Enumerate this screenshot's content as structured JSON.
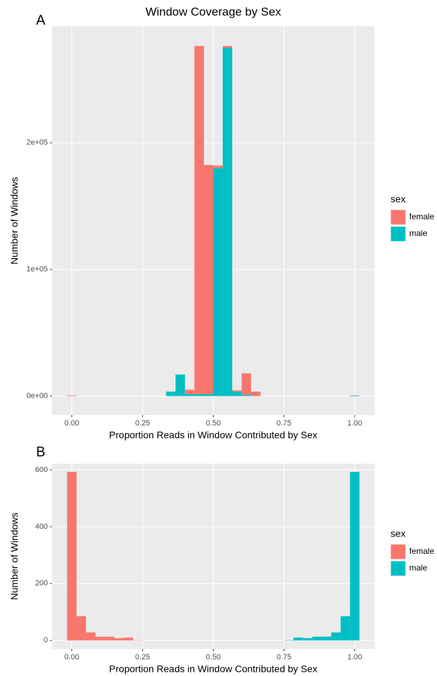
{
  "chart_data": [
    {
      "type": "histogram",
      "label": "A",
      "title": "Window Coverage by Sex",
      "x_label": "Proportion Reads in Window Contributed by Sex",
      "y_label": "Number of Windows",
      "legend_title": "sex",
      "legend": "right",
      "grid": true,
      "bins": [
        -0.0167,
        0.0167,
        0.3333,
        0.3667,
        0.4,
        0.4333,
        0.4667,
        0.5,
        0.5333,
        0.5667,
        0.6,
        0.6333,
        0.6667,
        0.9833,
        1.0167
      ],
      "series": [
        {
          "name": "female",
          "color": "#F8766D",
          "values": [
            500,
            0,
            0,
            0,
            3500,
            275000,
            181000,
            2000,
            1500,
            1000,
            17000,
            3500,
            0,
            0
          ]
        },
        {
          "name": "male",
          "color": "#00BFC4",
          "values": [
            0,
            0,
            3500,
            17000,
            1500,
            1500,
            1500,
            180000,
            275000,
            3500,
            1000,
            0,
            0,
            500
          ]
        }
      ],
      "xlim": [
        -0.07,
        1.07
      ],
      "xticks": [
        {
          "value": 0,
          "label": "0.00"
        },
        0.25,
        {
          "value": 0.5,
          "label": "0.50"
        },
        0.75,
        {
          "value": 1,
          "label": "1.00"
        }
      ],
      "ylim": [
        -15000,
        292000
      ],
      "yticks": [
        {
          "value": 0,
          "label": "0e+00"
        },
        {
          "value": 100000,
          "label": "1e+05"
        },
        {
          "value": 200000,
          "label": "2e+05"
        }
      ]
    },
    {
      "type": "histogram",
      "label": "B",
      "x_label": "Proportion Reads in Window Contributed by Sex",
      "y_label": "Number of Windows",
      "legend_title": "sex",
      "legend": "right",
      "grid": true,
      "bins": [
        -0.0167,
        0.0167,
        0.05,
        0.0833,
        0.1167,
        0.15,
        0.1833,
        0.2167,
        0.25,
        0.2833,
        0.3167,
        0.35,
        0.3833,
        0.4167,
        0.45,
        0.4833,
        0.5167,
        0.55,
        0.5833,
        0.6167,
        0.65,
        0.6833,
        0.7167,
        0.75,
        0.7833,
        0.8167,
        0.85,
        0.8833,
        0.9167,
        0.95,
        0.9833,
        1.0167
      ],
      "series": [
        {
          "name": "female",
          "color": "#F8766D",
          "values": [
            593,
            85,
            28,
            13,
            13,
            8,
            10,
            1,
            0,
            0,
            0,
            0,
            0,
            0,
            0,
            0,
            0,
            0,
            0,
            0,
            0,
            0,
            0,
            0,
            0,
            0,
            0,
            0,
            0,
            0,
            0
          ]
        },
        {
          "name": "male",
          "color": "#00BFC4",
          "values": [
            0,
            0,
            0,
            0,
            0,
            0,
            0,
            0,
            0,
            0,
            0,
            0,
            0,
            0,
            0,
            0,
            0,
            0,
            0,
            0,
            0,
            0,
            0,
            1,
            10,
            8,
            13,
            13,
            28,
            85,
            593
          ]
        }
      ],
      "xlim": [
        -0.07,
        1.07
      ],
      "xticks": [
        {
          "value": 0,
          "label": "0.00"
        },
        0.25,
        {
          "value": 0.5,
          "label": "0.50"
        },
        0.75,
        {
          "value": 1,
          "label": "1.00"
        }
      ],
      "ylim": [
        -30,
        622
      ],
      "yticks": [
        0,
        200,
        400,
        600
      ]
    }
  ]
}
